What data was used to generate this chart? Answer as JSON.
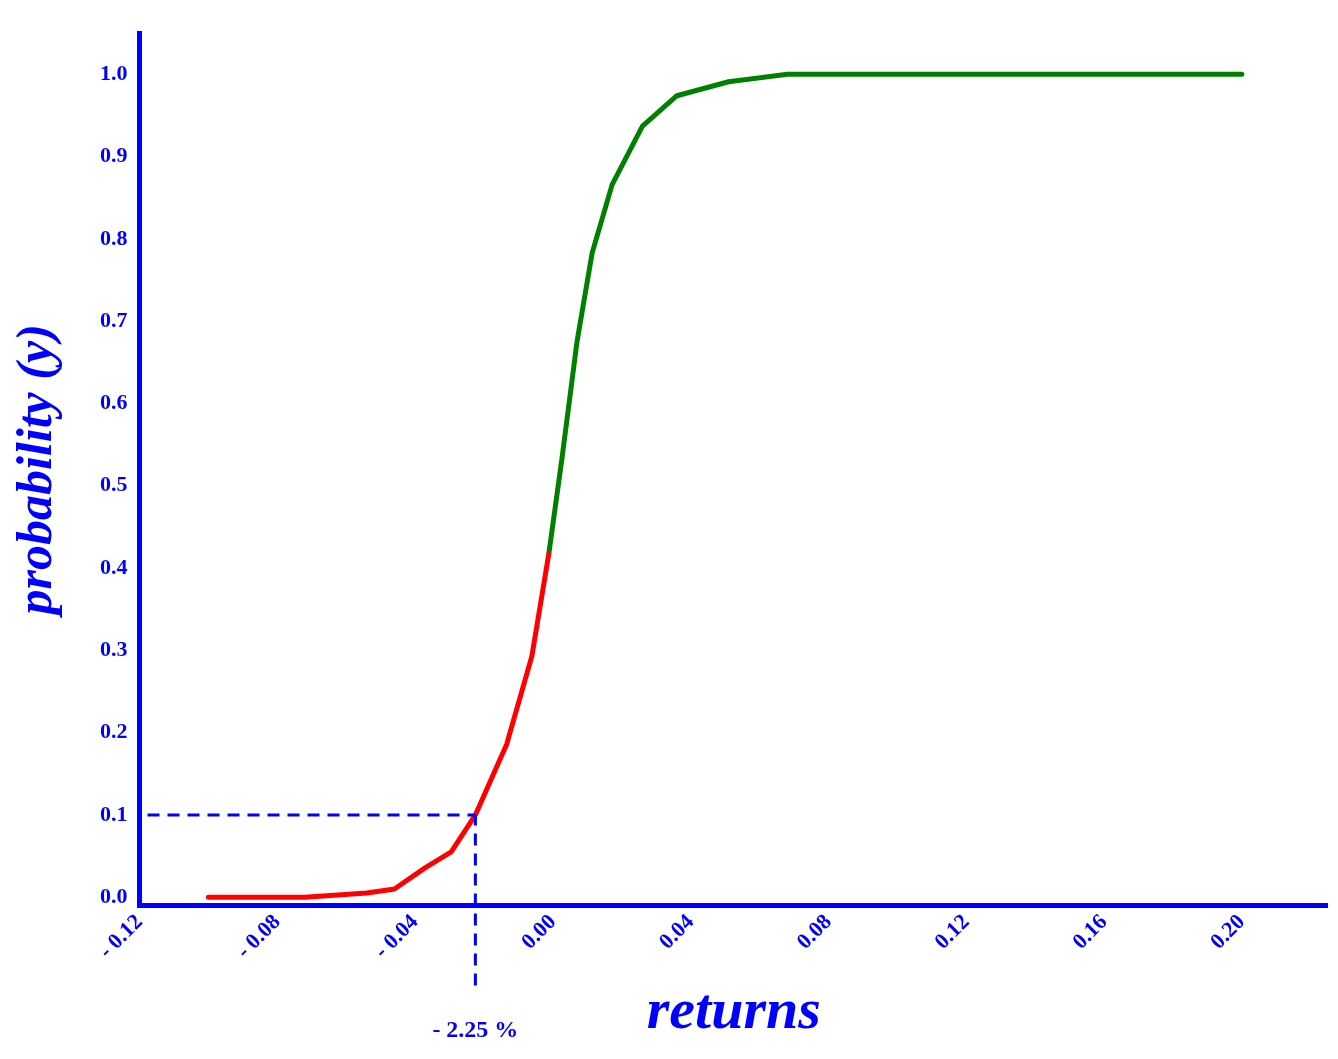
{
  "chart_data": {
    "type": "line",
    "xlabel": "returns",
    "ylabel": "probability (y)",
    "xlim": [
      -0.12,
      0.225
    ],
    "ylim": [
      -0.01,
      1.05
    ],
    "xticks": [
      {
        "value": -0.12,
        "label": "- 0.12"
      },
      {
        "value": -0.08,
        "label": "- 0.08"
      },
      {
        "value": -0.04,
        "label": "- 0.04"
      },
      {
        "value": 0,
        "label": "0.00"
      },
      {
        "value": 0.04,
        "label": "0.04"
      },
      {
        "value": 0.08,
        "label": "0.08"
      },
      {
        "value": 0.12,
        "label": "0.12"
      },
      {
        "value": 0.16,
        "label": "0.16"
      },
      {
        "value": 0.2,
        "label": "0.20"
      }
    ],
    "yticks": [
      {
        "value": 0,
        "label": "0.0"
      },
      {
        "value": 0.1,
        "label": "0.1"
      },
      {
        "value": 0.2,
        "label": "0.2"
      },
      {
        "value": 0.3,
        "label": "0.3"
      },
      {
        "value": 0.4,
        "label": "0.4"
      },
      {
        "value": 0.5,
        "label": "0.5"
      },
      {
        "value": 0.6,
        "label": "0.6"
      },
      {
        "value": 0.7,
        "label": "0.7"
      },
      {
        "value": 0.8,
        "label": "0.8"
      },
      {
        "value": 0.9,
        "label": "0.9"
      },
      {
        "value": 1,
        "label": "1.0"
      }
    ],
    "grid": false,
    "legend": false,
    "marker": "none",
    "line_style": "solid",
    "series": [
      {
        "color": "#ff0000",
        "x": [
          -0.1,
          -0.072,
          -0.054,
          -0.046,
          -0.037,
          -0.0295,
          -0.0225,
          -0.0134,
          -0.0061,
          -0.0012
        ],
        "values": [
          0,
          0,
          0.005,
          0.01,
          0.036,
          0.055,
          0.1,
          0.186,
          0.293,
          0.417
        ]
      },
      {
        "color": "#008000",
        "x": [
          -0.0012,
          0.0026,
          0.007,
          0.0114,
          0.0172,
          0.026,
          0.036,
          0.051,
          0.068,
          0.098,
          0.2
        ],
        "values": [
          0.417,
          0.532,
          0.675,
          0.783,
          0.866,
          0.937,
          0.974,
          0.991,
          1,
          1,
          1
        ]
      }
    ],
    "ref_lines": [
      {
        "axis": "x",
        "value": -0.0225,
        "label": "- 2.25 %",
        "color": "#0000ff",
        "line_style": "dashed"
      },
      {
        "axis": "y",
        "value": 0.1,
        "color": "#0000ff",
        "line_style": "dashed"
      }
    ]
  }
}
